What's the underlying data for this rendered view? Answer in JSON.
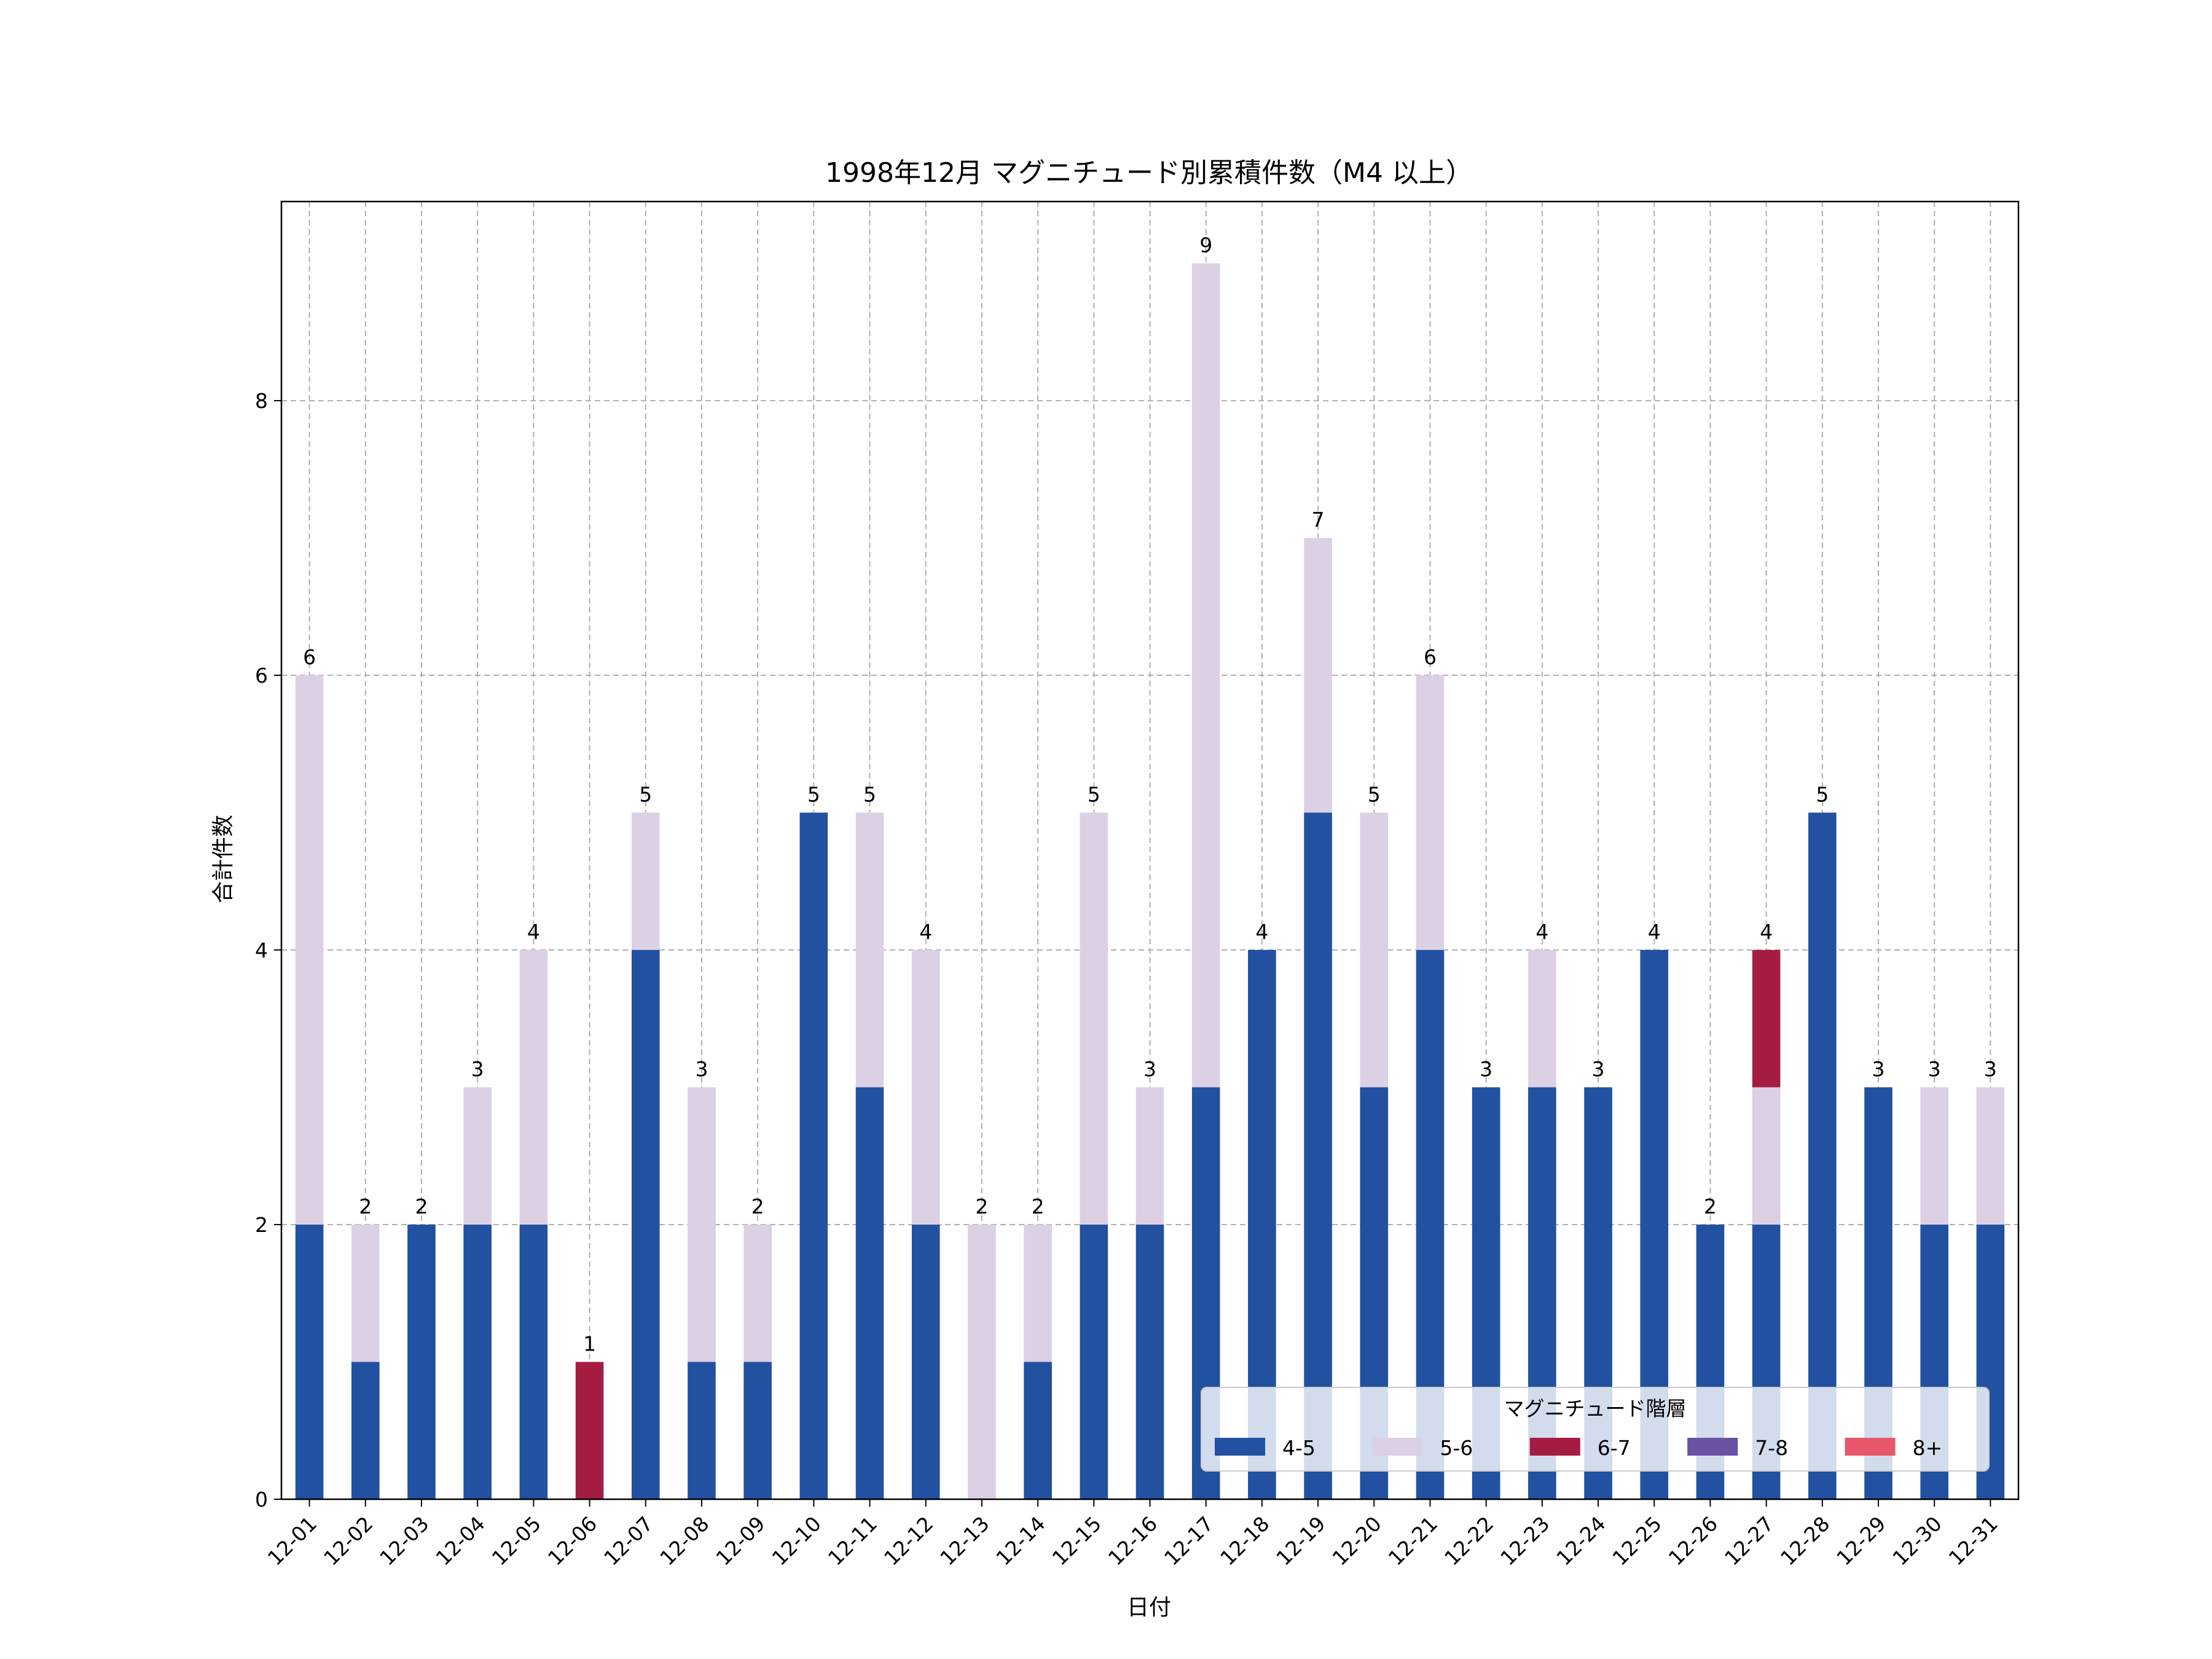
{
  "chart_data": {
    "type": "bar",
    "stacked": true,
    "title": "1998年12月 マグニチュード別累積件数（M4 以上）",
    "xlabel": "日付",
    "ylabel": "合計件数",
    "ylim": [
      0,
      9.45
    ],
    "yticks": [
      0,
      2,
      4,
      6,
      8
    ],
    "grid": true,
    "legend": {
      "title": "マグニチュード階層",
      "placement": "bottom-right"
    },
    "categories": [
      "12-01",
      "12-02",
      "12-03",
      "12-04",
      "12-05",
      "12-06",
      "12-07",
      "12-08",
      "12-09",
      "12-10",
      "12-11",
      "12-12",
      "12-13",
      "12-14",
      "12-15",
      "12-16",
      "12-17",
      "12-18",
      "12-19",
      "12-20",
      "12-21",
      "12-22",
      "12-23",
      "12-24",
      "12-25",
      "12-26",
      "12-27",
      "12-28",
      "12-29",
      "12-30",
      "12-31"
    ],
    "series": [
      {
        "name": "4-5",
        "color": "#2251a1",
        "values": [
          2,
          1,
          2,
          2,
          2,
          0,
          4,
          1,
          1,
          5,
          3,
          2,
          0,
          1,
          2,
          2,
          3,
          4,
          5,
          3,
          4,
          3,
          3,
          3,
          4,
          2,
          2,
          5,
          3,
          2,
          2
        ]
      },
      {
        "name": "5-6",
        "color": "#dcd0e4",
        "values": [
          4,
          1,
          0,
          1,
          2,
          0,
          1,
          2,
          1,
          0,
          2,
          2,
          2,
          1,
          3,
          1,
          6,
          0,
          2,
          2,
          2,
          0,
          1,
          0,
          0,
          0,
          1,
          0,
          0,
          1,
          1
        ]
      },
      {
        "name": "6-7",
        "color": "#a51c43",
        "values": [
          0,
          0,
          0,
          0,
          0,
          1,
          0,
          0,
          0,
          0,
          0,
          0,
          0,
          0,
          0,
          0,
          0,
          0,
          0,
          0,
          0,
          0,
          0,
          0,
          0,
          0,
          1,
          0,
          0,
          0,
          0
        ]
      },
      {
        "name": "7-8",
        "color": "#6a52a3",
        "values": [
          0,
          0,
          0,
          0,
          0,
          0,
          0,
          0,
          0,
          0,
          0,
          0,
          0,
          0,
          0,
          0,
          0,
          0,
          0,
          0,
          0,
          0,
          0,
          0,
          0,
          0,
          0,
          0,
          0,
          0,
          0
        ]
      },
      {
        "name": "8+",
        "color": "#e8566b",
        "values": [
          0,
          0,
          0,
          0,
          0,
          0,
          0,
          0,
          0,
          0,
          0,
          0,
          0,
          0,
          0,
          0,
          0,
          0,
          0,
          0,
          0,
          0,
          0,
          0,
          0,
          0,
          0,
          0,
          0,
          0,
          0
        ]
      }
    ],
    "totals": [
      6,
      2,
      2,
      3,
      4,
      1,
      5,
      3,
      2,
      5,
      5,
      4,
      2,
      2,
      5,
      3,
      9,
      4,
      7,
      5,
      6,
      3,
      4,
      3,
      4,
      2,
      4,
      5,
      3,
      3,
      3
    ]
  }
}
